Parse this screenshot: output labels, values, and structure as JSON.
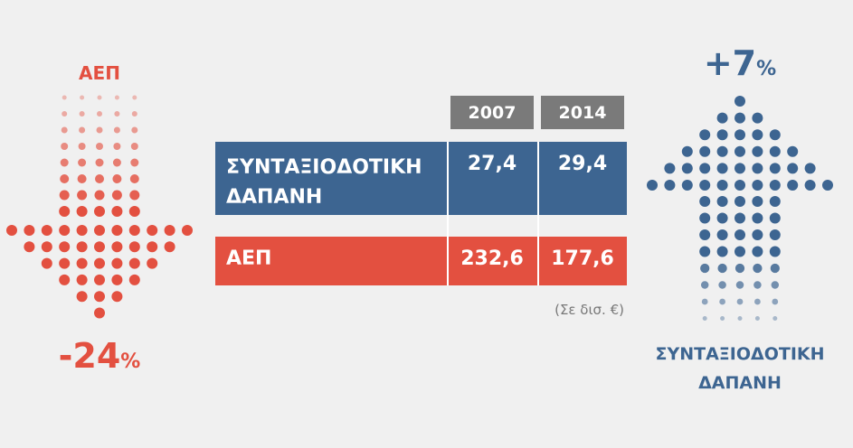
{
  "left": {
    "label": "ΑΕΠ",
    "change": "-24",
    "unit": "%"
  },
  "right": {
    "label": "ΣΥΝΤΑΞΙΟΔΟΤΙΚΗ ΔΑΠΑΝΗ",
    "change": "+7",
    "unit": "%"
  },
  "table": {
    "columns": [
      "2007",
      "2014"
    ],
    "rows": [
      [
        "ΣΥΝΤΑΞΙΟΔΟΤΙΚΗ ΔΑΠΑΝΗ",
        "27,4",
        "29,4"
      ],
      [
        "ΑΕΠ",
        "232,6",
        "177,6"
      ]
    ],
    "note": "(Σε δισ. €)"
  }
}
